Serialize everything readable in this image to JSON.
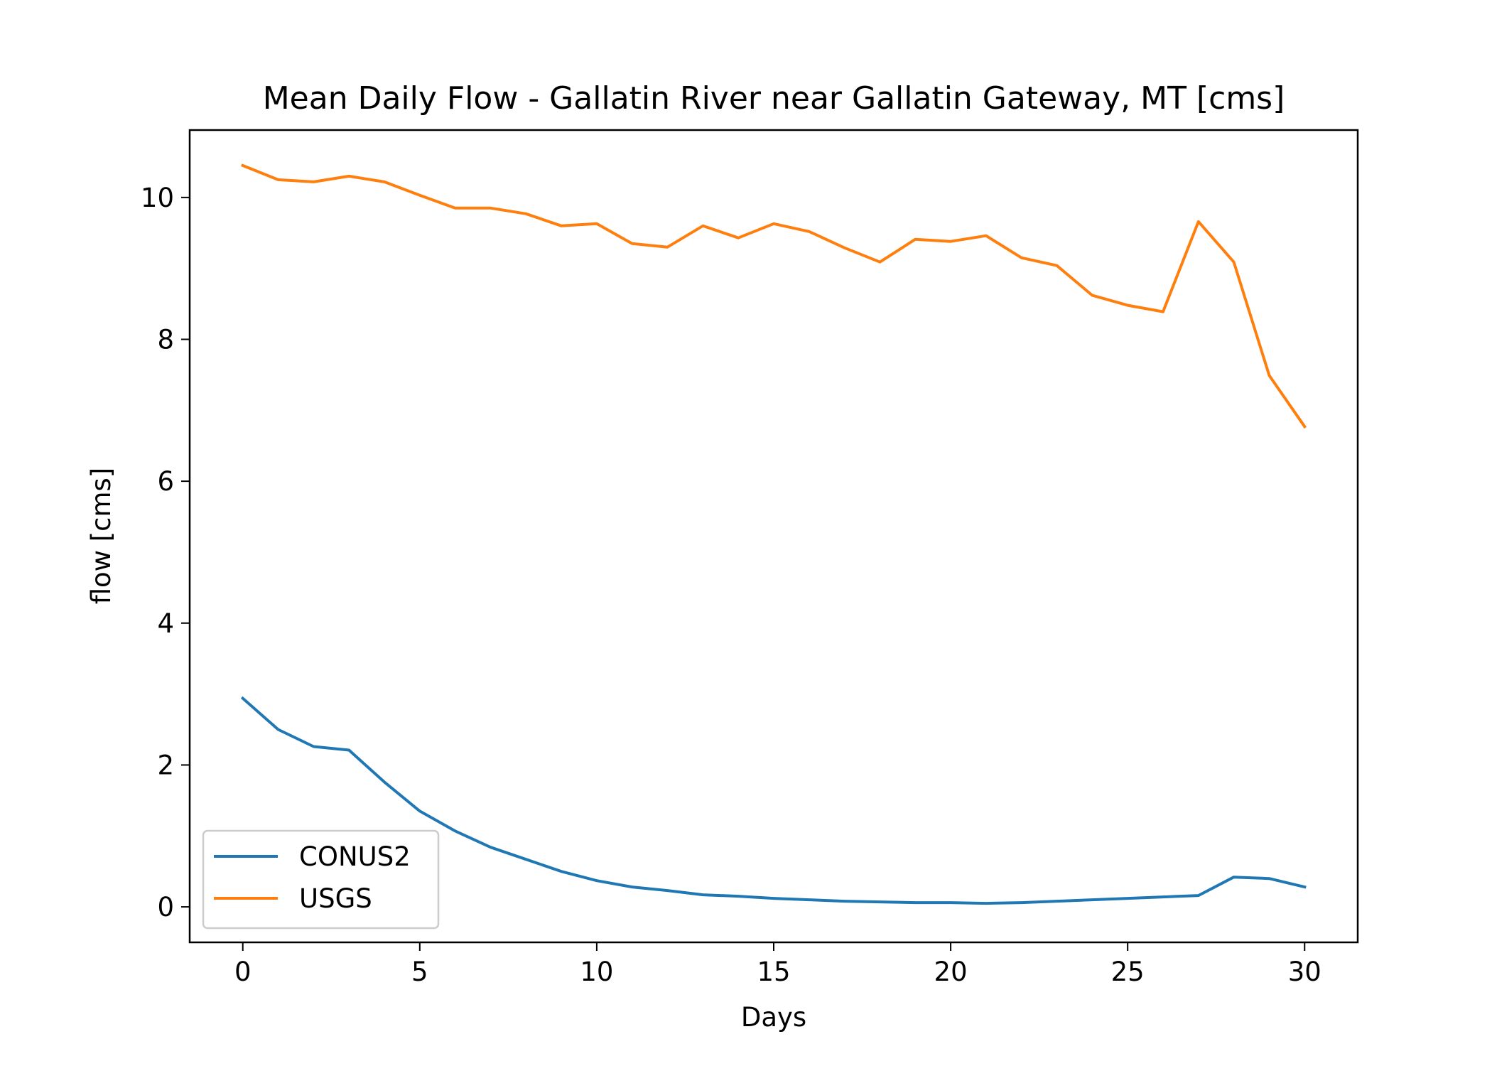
{
  "chart_data": {
    "type": "line",
    "title": "Mean Daily Flow - Gallatin River near Gallatin Gateway, MT [cms]",
    "xlabel": "Days",
    "ylabel": "flow [cms]",
    "xlim": [
      -1.5,
      31.5
    ],
    "ylim": [
      -0.5,
      10.95
    ],
    "xticks": [
      0,
      5,
      10,
      15,
      20,
      25,
      30
    ],
    "yticks": [
      0,
      2,
      4,
      6,
      8,
      10
    ],
    "grid": false,
    "legend_position": "lower-left",
    "x": [
      0,
      1,
      2,
      3,
      4,
      5,
      6,
      7,
      8,
      9,
      10,
      11,
      12,
      13,
      14,
      15,
      16,
      17,
      18,
      19,
      20,
      21,
      22,
      23,
      24,
      25,
      26,
      27,
      28,
      29,
      30
    ],
    "series": [
      {
        "name": "CONUS2",
        "color": "#1f77b4",
        "values": [
          2.94,
          2.5,
          2.26,
          2.21,
          1.76,
          1.35,
          1.07,
          0.84,
          0.67,
          0.5,
          0.37,
          0.28,
          0.23,
          0.17,
          0.15,
          0.12,
          0.1,
          0.08,
          0.07,
          0.06,
          0.06,
          0.05,
          0.06,
          0.08,
          0.1,
          0.12,
          0.14,
          0.16,
          0.42,
          0.4,
          0.28
        ]
      },
      {
        "name": "USGS",
        "color": "#ff7f0e",
        "values": [
          10.45,
          10.25,
          10.22,
          10.3,
          10.22,
          10.03,
          9.85,
          9.85,
          9.77,
          9.6,
          9.63,
          9.35,
          9.3,
          9.6,
          9.43,
          9.63,
          9.52,
          9.29,
          9.09,
          9.41,
          9.38,
          9.46,
          9.15,
          9.04,
          8.62,
          8.48,
          8.39,
          9.66,
          9.09,
          7.49,
          6.77
        ]
      }
    ]
  }
}
